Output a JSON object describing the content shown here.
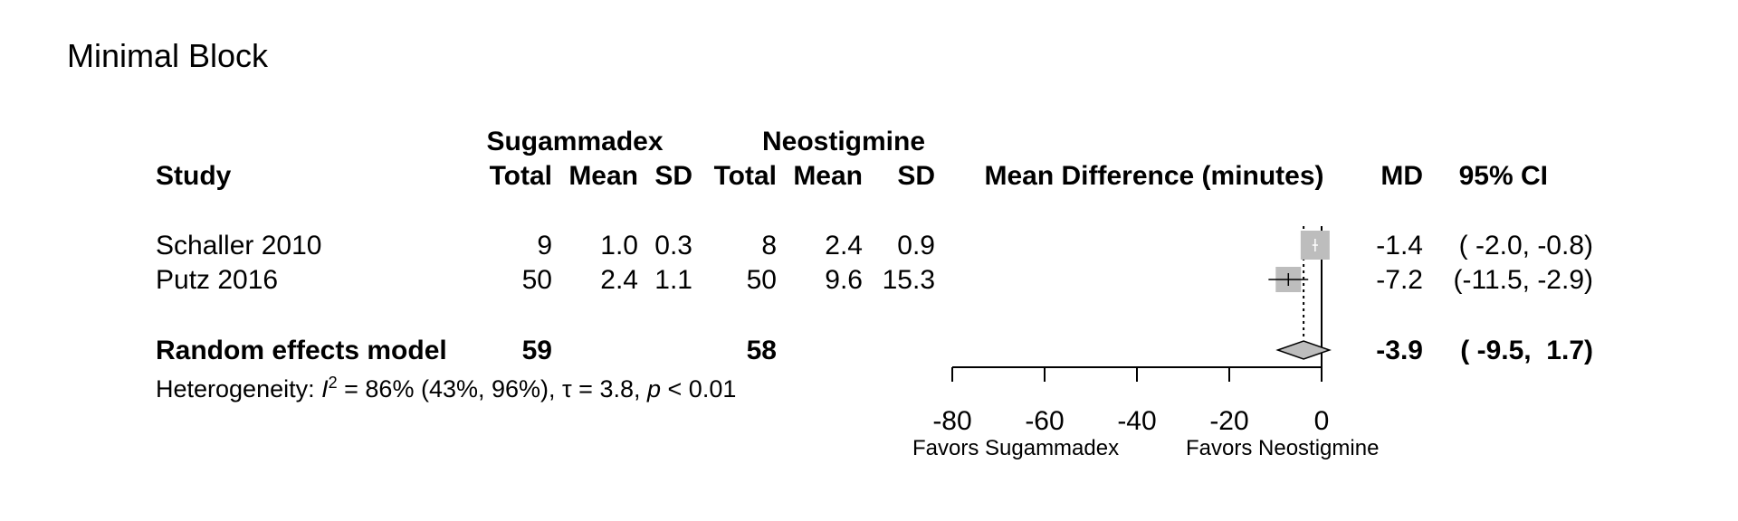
{
  "title": "Minimal Block",
  "headers": {
    "study": "Study",
    "group1": "Sugammadex",
    "group2": "Neostigmine",
    "total": "Total",
    "mean": "Mean",
    "sd": "SD",
    "effect": "Mean Difference (minutes)",
    "md": "MD",
    "ci": "95% CI"
  },
  "studies": [
    {
      "name": "Schaller 2010",
      "total1": "9",
      "mean1": "1.0",
      "sd1": "0.3",
      "total2": "8",
      "mean2": "2.4",
      "sd2": "0.9",
      "md": "-1.4",
      "ci": "( -2.0, -0.8)"
    },
    {
      "name": "Putz 2016",
      "total1": "50",
      "mean1": "2.4",
      "sd1": "1.1",
      "total2": "50",
      "mean2": "9.6",
      "sd2": "15.3",
      "md": "-7.2",
      "ci": "(-11.5, -2.9)"
    }
  ],
  "pooled": {
    "name": "Random effects model",
    "total1": "59",
    "total2": "58",
    "md": "-3.9",
    "ci": "( -9.5,  1.7)"
  },
  "heterogeneity": {
    "prefix": "Heterogeneity: ",
    "i2_label": "I",
    "i2_sup": "2",
    "text": " = 86% (43%, 96%), τ = 3.8, ",
    "p_label": "p",
    "p_text": " < 0.01"
  },
  "favors": {
    "left": "Favors Sugammadex",
    "right": "Favors Neostigmine"
  },
  "colors": {
    "box": "#bdbdbd",
    "diamond": "#bdbdbd",
    "line": "#000000"
  },
  "chart_data": {
    "type": "forest",
    "title": "Minimal Block",
    "xlabel": "Mean Difference (minutes)",
    "xlim": [
      -80,
      0
    ],
    "ticks": [
      -80,
      -60,
      -40,
      -20,
      0
    ],
    "tick_labels": [
      "-80",
      "-60",
      "-40",
      "-20",
      "0"
    ],
    "null_value": 0,
    "studies": [
      {
        "name": "Schaller 2010",
        "md": -1.4,
        "lower": -2.0,
        "upper": -0.8
      },
      {
        "name": "Putz 2016",
        "md": -7.2,
        "lower": -11.5,
        "upper": -2.9
      }
    ],
    "pooled": {
      "name": "Random effects model",
      "md": -3.9,
      "lower": -9.5,
      "upper": 1.7
    }
  }
}
